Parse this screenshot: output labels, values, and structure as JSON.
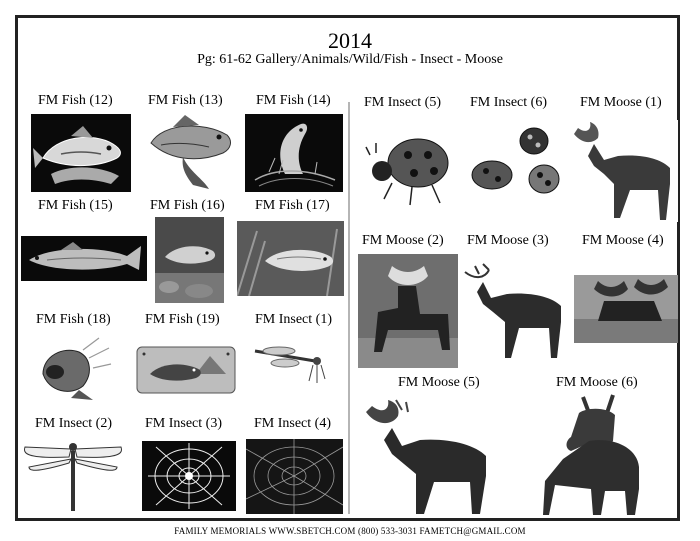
{
  "header": {
    "year": "2014",
    "subtitle": "Pg: 61-62 Gallery/Animals/Wild/Fish - Insect - Moose"
  },
  "left_page": {
    "items": [
      {
        "label": "FM Fish (12)"
      },
      {
        "label": "FM Fish (13)"
      },
      {
        "label": "FM Fish (14)"
      },
      {
        "label": "FM Fish (15)"
      },
      {
        "label": "FM Fish (16)"
      },
      {
        "label": "FM Fish (17)"
      },
      {
        "label": "FM Fish (18)"
      },
      {
        "label": "FM Fish (19)"
      },
      {
        "label": "FM Insect (1)"
      },
      {
        "label": "FM Insect (2)"
      },
      {
        "label": "FM Insect (3)"
      },
      {
        "label": "FM Insect (4)"
      }
    ]
  },
  "right_page": {
    "items": [
      {
        "label": "FM Insect (5)"
      },
      {
        "label": "FM Insect (6)"
      },
      {
        "label": "FM Moose (1)"
      },
      {
        "label": "FM Moose (2)"
      },
      {
        "label": "FM Moose (3)"
      },
      {
        "label": "FM Moose (4)"
      },
      {
        "label": "FM Moose (5)"
      },
      {
        "label": "FM Moose (6)"
      }
    ]
  },
  "footer": {
    "text": "FAMILY MEMORIALS    WWW.SBETCH.COM    (800) 533-3031    FAMETCH@GMAIL.COM"
  }
}
